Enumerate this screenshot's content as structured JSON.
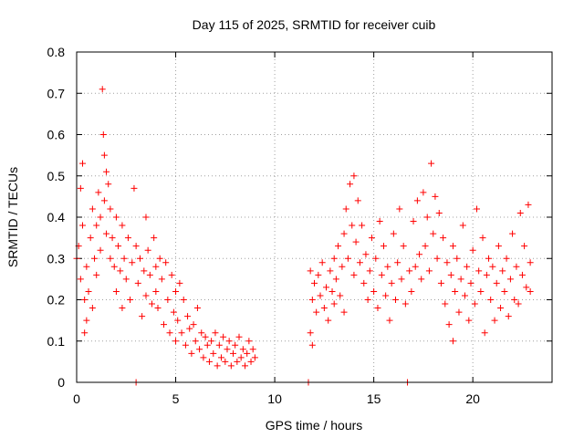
{
  "chart_data": {
    "type": "scatter",
    "title": "Day 115 of 2025, SRMTID for receiver cuib",
    "xlabel": "GPS time / hours",
    "ylabel": "SRMTID / TECUs",
    "xlim": [
      0,
      24
    ],
    "ylim": [
      0,
      0.8
    ],
    "x_ticks": [
      0,
      5,
      10,
      15,
      20
    ],
    "y_ticks": [
      0,
      0.1,
      0.2,
      0.3,
      0.4,
      0.5,
      0.6,
      0.7,
      0.8
    ],
    "x_tick_labels": [
      "0",
      "5",
      "10",
      "15",
      "20"
    ],
    "y_tick_labels": [
      "0",
      "0.1",
      "0.2",
      "0.3",
      "0.4",
      "0.5",
      "0.6",
      "0.7",
      "0.8"
    ],
    "grid": true,
    "marker": "+",
    "color": "#ff0000",
    "series": [
      {
        "name": "SRMTID",
        "points": [
          [
            0.0,
            0.3
          ],
          [
            0.1,
            0.33
          ],
          [
            0.2,
            0.25
          ],
          [
            0.2,
            0.47
          ],
          [
            0.3,
            0.53
          ],
          [
            0.3,
            0.38
          ],
          [
            0.4,
            0.2
          ],
          [
            0.4,
            0.12
          ],
          [
            0.5,
            0.28
          ],
          [
            0.5,
            0.15
          ],
          [
            0.6,
            0.22
          ],
          [
            0.7,
            0.35
          ],
          [
            0.8,
            0.42
          ],
          [
            0.8,
            0.18
          ],
          [
            0.9,
            0.3
          ],
          [
            1.0,
            0.38
          ],
          [
            1.0,
            0.26
          ],
          [
            1.1,
            0.46
          ],
          [
            1.2,
            0.4
          ],
          [
            1.2,
            0.32
          ],
          [
            1.3,
            0.71
          ],
          [
            1.35,
            0.6
          ],
          [
            1.4,
            0.55
          ],
          [
            1.4,
            0.44
          ],
          [
            1.5,
            0.51
          ],
          [
            1.5,
            0.36
          ],
          [
            1.6,
            0.48
          ],
          [
            1.7,
            0.42
          ],
          [
            1.7,
            0.3
          ],
          [
            1.8,
            0.35
          ],
          [
            1.9,
            0.28
          ],
          [
            2.0,
            0.4
          ],
          [
            2.0,
            0.22
          ],
          [
            2.1,
            0.33
          ],
          [
            2.2,
            0.27
          ],
          [
            2.3,
            0.38
          ],
          [
            2.3,
            0.18
          ],
          [
            2.4,
            0.3
          ],
          [
            2.5,
            0.25
          ],
          [
            2.6,
            0.35
          ],
          [
            2.7,
            0.2
          ],
          [
            2.8,
            0.29
          ],
          [
            2.9,
            0.47
          ],
          [
            3.0,
            0.33
          ],
          [
            3.0,
            0.0
          ],
          [
            3.1,
            0.24
          ],
          [
            3.2,
            0.3
          ],
          [
            3.3,
            0.16
          ],
          [
            3.4,
            0.27
          ],
          [
            3.5,
            0.4
          ],
          [
            3.5,
            0.21
          ],
          [
            3.6,
            0.32
          ],
          [
            3.7,
            0.26
          ],
          [
            3.8,
            0.19
          ],
          [
            3.9,
            0.35
          ],
          [
            4.0,
            0.28
          ],
          [
            4.0,
            0.22
          ],
          [
            4.1,
            0.18
          ],
          [
            4.2,
            0.3
          ],
          [
            4.3,
            0.25
          ],
          [
            4.4,
            0.14
          ],
          [
            4.5,
            0.29
          ],
          [
            4.6,
            0.2
          ],
          [
            4.7,
            0.12
          ],
          [
            4.8,
            0.26
          ],
          [
            4.9,
            0.17
          ],
          [
            5.0,
            0.1
          ],
          [
            5.0,
            0.22
          ],
          [
            5.1,
            0.15
          ],
          [
            5.2,
            0.24
          ],
          [
            5.3,
            0.12
          ],
          [
            5.4,
            0.2
          ],
          [
            5.5,
            0.09
          ],
          [
            5.6,
            0.16
          ],
          [
            5.7,
            0.13
          ],
          [
            5.8,
            0.07
          ],
          [
            5.9,
            0.14
          ],
          [
            6.0,
            0.1
          ],
          [
            6.1,
            0.18
          ],
          [
            6.2,
            0.08
          ],
          [
            6.3,
            0.12
          ],
          [
            6.4,
            0.06
          ],
          [
            6.5,
            0.11
          ],
          [
            6.6,
            0.09
          ],
          [
            6.7,
            0.05
          ],
          [
            6.8,
            0.1
          ],
          [
            6.9,
            0.07
          ],
          [
            7.0,
            0.12
          ],
          [
            7.1,
            0.04
          ],
          [
            7.2,
            0.09
          ],
          [
            7.3,
            0.06
          ],
          [
            7.4,
            0.11
          ],
          [
            7.5,
            0.05
          ],
          [
            7.6,
            0.08
          ],
          [
            7.7,
            0.1
          ],
          [
            7.8,
            0.04
          ],
          [
            7.9,
            0.07
          ],
          [
            8.0,
            0.09
          ],
          [
            8.1,
            0.05
          ],
          [
            8.2,
            0.11
          ],
          [
            8.3,
            0.06
          ],
          [
            8.4,
            0.08
          ],
          [
            8.5,
            0.04
          ],
          [
            8.6,
            0.07
          ],
          [
            8.7,
            0.1
          ],
          [
            8.8,
            0.05
          ],
          [
            8.9,
            0.08
          ],
          [
            9.0,
            0.06
          ],
          [
            11.7,
            0.0
          ],
          [
            11.8,
            0.27
          ],
          [
            11.8,
            0.12
          ],
          [
            11.9,
            0.2
          ],
          [
            11.9,
            0.09
          ],
          [
            12.0,
            0.24
          ],
          [
            12.1,
            0.17
          ],
          [
            12.2,
            0.26
          ],
          [
            12.3,
            0.21
          ],
          [
            12.4,
            0.29
          ],
          [
            12.5,
            0.18
          ],
          [
            12.6,
            0.23
          ],
          [
            12.7,
            0.15
          ],
          [
            12.8,
            0.27
          ],
          [
            12.9,
            0.22
          ],
          [
            13.0,
            0.3
          ],
          [
            13.0,
            0.19
          ],
          [
            13.1,
            0.25
          ],
          [
            13.2,
            0.33
          ],
          [
            13.3,
            0.21
          ],
          [
            13.4,
            0.28
          ],
          [
            13.5,
            0.36
          ],
          [
            13.5,
            0.17
          ],
          [
            13.6,
            0.42
          ],
          [
            13.7,
            0.3
          ],
          [
            13.8,
            0.48
          ],
          [
            13.9,
            0.38
          ],
          [
            14.0,
            0.5
          ],
          [
            14.0,
            0.26
          ],
          [
            14.1,
            0.34
          ],
          [
            14.2,
            0.44
          ],
          [
            14.3,
            0.29
          ],
          [
            14.4,
            0.38
          ],
          [
            14.5,
            0.24
          ],
          [
            14.6,
            0.31
          ],
          [
            14.7,
            0.2
          ],
          [
            14.8,
            0.27
          ],
          [
            14.9,
            0.35
          ],
          [
            15.0,
            0.22
          ],
          [
            15.1,
            0.3
          ],
          [
            15.2,
            0.18
          ],
          [
            15.3,
            0.39
          ],
          [
            15.4,
            0.26
          ],
          [
            15.5,
            0.33
          ],
          [
            15.6,
            0.21
          ],
          [
            15.7,
            0.28
          ],
          [
            15.8,
            0.15
          ],
          [
            15.9,
            0.24
          ],
          [
            16.0,
            0.36
          ],
          [
            16.1,
            0.2
          ],
          [
            16.2,
            0.29
          ],
          [
            16.3,
            0.42
          ],
          [
            16.4,
            0.25
          ],
          [
            16.5,
            0.33
          ],
          [
            16.6,
            0.19
          ],
          [
            16.7,
            0.0
          ],
          [
            16.8,
            0.27
          ],
          [
            16.9,
            0.22
          ],
          [
            17.0,
            0.39
          ],
          [
            17.1,
            0.28
          ],
          [
            17.2,
            0.44
          ],
          [
            17.3,
            0.31
          ],
          [
            17.4,
            0.25
          ],
          [
            17.5,
            0.46
          ],
          [
            17.6,
            0.33
          ],
          [
            17.7,
            0.4
          ],
          [
            17.8,
            0.27
          ],
          [
            17.9,
            0.53
          ],
          [
            18.0,
            0.36
          ],
          [
            18.1,
            0.45
          ],
          [
            18.2,
            0.3
          ],
          [
            18.3,
            0.41
          ],
          [
            18.4,
            0.24
          ],
          [
            18.5,
            0.35
          ],
          [
            18.6,
            0.19
          ],
          [
            18.7,
            0.29
          ],
          [
            18.8,
            0.14
          ],
          [
            18.9,
            0.26
          ],
          [
            19.0,
            0.33
          ],
          [
            19.0,
            0.1
          ],
          [
            19.1,
            0.22
          ],
          [
            19.2,
            0.3
          ],
          [
            19.3,
            0.17
          ],
          [
            19.4,
            0.25
          ],
          [
            19.5,
            0.38
          ],
          [
            19.6,
            0.21
          ],
          [
            19.7,
            0.28
          ],
          [
            19.8,
            0.15
          ],
          [
            19.9,
            0.24
          ],
          [
            20.0,
            0.32
          ],
          [
            20.1,
            0.19
          ],
          [
            20.2,
            0.42
          ],
          [
            20.3,
            0.27
          ],
          [
            20.4,
            0.22
          ],
          [
            20.5,
            0.35
          ],
          [
            20.6,
            0.12
          ],
          [
            20.7,
            0.26
          ],
          [
            20.8,
            0.3
          ],
          [
            20.9,
            0.2
          ],
          [
            21.0,
            0.28
          ],
          [
            21.1,
            0.15
          ],
          [
            21.2,
            0.24
          ],
          [
            21.3,
            0.33
          ],
          [
            21.4,
            0.18
          ],
          [
            21.5,
            0.27
          ],
          [
            21.6,
            0.22
          ],
          [
            21.7,
            0.3
          ],
          [
            21.8,
            0.16
          ],
          [
            21.9,
            0.25
          ],
          [
            22.0,
            0.36
          ],
          [
            22.1,
            0.2
          ],
          [
            22.2,
            0.28
          ],
          [
            22.3,
            0.19
          ],
          [
            22.4,
            0.41
          ],
          [
            22.5,
            0.26
          ],
          [
            22.6,
            0.33
          ],
          [
            22.7,
            0.23
          ],
          [
            22.8,
            0.43
          ],
          [
            22.9,
            0.29
          ],
          [
            22.9,
            0.22
          ]
        ]
      }
    ]
  }
}
